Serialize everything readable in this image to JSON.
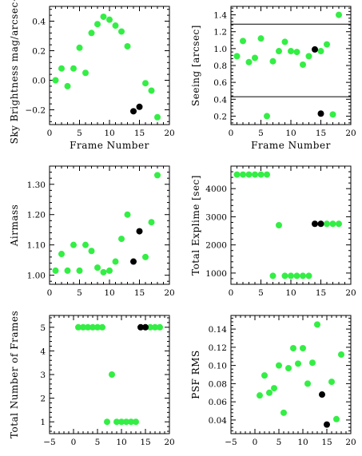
{
  "colors": {
    "green": "#33ee44",
    "black": "#000000",
    "frame": "#000000",
    "refline": "#000000"
  },
  "chart_data": [
    {
      "type": "scatter",
      "xlabel": "Frame Number",
      "ylabel": "Sky Brightness mag/arcsec^2",
      "xlim": [
        0,
        20
      ],
      "ylim": [
        -0.3,
        0.5
      ],
      "xticks": [
        0,
        5,
        10,
        15,
        20
      ],
      "xtick_labels": [
        "0",
        "5",
        "10",
        "15",
        "20"
      ],
      "yticks": [
        -0.2,
        0.0,
        0.2,
        0.4
      ],
      "ytick_labels": [
        "-0.2",
        "0.0",
        "0.2",
        "0.4"
      ],
      "series": [
        {
          "color": "green",
          "points": [
            [
              1,
              0.0
            ],
            [
              2,
              0.08
            ],
            [
              3,
              -0.04
            ],
            [
              4,
              0.08
            ],
            [
              5,
              0.22
            ],
            [
              6,
              0.05
            ],
            [
              7,
              0.32
            ],
            [
              8,
              0.38
            ],
            [
              9,
              0.43
            ],
            [
              10,
              0.41
            ],
            [
              11,
              0.37
            ],
            [
              12,
              0.33
            ],
            [
              13,
              0.23
            ],
            [
              16,
              -0.02
            ],
            [
              17,
              -0.07
            ],
            [
              18,
              -0.25
            ]
          ]
        },
        {
          "color": "black",
          "points": [
            [
              14,
              -0.21
            ],
            [
              15,
              -0.18
            ]
          ]
        }
      ]
    },
    {
      "type": "scatter",
      "xlabel": "Frame Number",
      "ylabel": "Seeing [arcsec]",
      "xlim": [
        0,
        20
      ],
      "ylim": [
        0.1,
        1.5
      ],
      "xticks": [
        0,
        5,
        10,
        15,
        20
      ],
      "xtick_labels": [
        "0",
        "5",
        "10",
        "15",
        "20"
      ],
      "yticks": [
        0.2,
        0.4,
        0.6,
        0.8,
        1.0,
        1.2,
        1.4
      ],
      "ytick_labels": [
        "0.2",
        "0.4",
        "0.6",
        "0.8",
        "1.0",
        "1.2",
        "1.4"
      ],
      "hlines": [
        1.29,
        0.43
      ],
      "series": [
        {
          "color": "green",
          "points": [
            [
              1,
              0.91
            ],
            [
              2,
              1.09
            ],
            [
              3,
              0.84
            ],
            [
              4,
              0.89
            ],
            [
              5,
              1.12
            ],
            [
              6,
              0.2
            ],
            [
              7,
              0.85
            ],
            [
              8,
              0.97
            ],
            [
              9,
              1.08
            ],
            [
              10,
              0.97
            ],
            [
              11,
              0.96
            ],
            [
              12,
              0.81
            ],
            [
              13,
              0.91
            ],
            [
              15,
              0.97
            ],
            [
              16,
              1.05
            ],
            [
              17,
              0.22
            ],
            [
              18,
              1.4
            ]
          ]
        },
        {
          "color": "black",
          "points": [
            [
              14,
              0.99
            ],
            [
              15,
              0.23
            ]
          ]
        }
      ]
    },
    {
      "type": "scatter",
      "xlabel": "",
      "ylabel": "Airmass",
      "xlim": [
        0,
        20
      ],
      "ylim": [
        0.97,
        1.36
      ],
      "xticks": [
        0,
        5,
        10,
        15,
        20
      ],
      "xtick_labels": [
        "0",
        "5",
        "10",
        "15",
        "20"
      ],
      "yticks": [
        1.0,
        1.1,
        1.2,
        1.3
      ],
      "ytick_labels": [
        "1.00",
        "1.10",
        "1.20",
        "1.30"
      ],
      "series": [
        {
          "color": "green",
          "points": [
            [
              1,
              1.015
            ],
            [
              2,
              1.07
            ],
            [
              3,
              1.015
            ],
            [
              4,
              1.1
            ],
            [
              5,
              1.015
            ],
            [
              6,
              1.1
            ],
            [
              7,
              1.08
            ],
            [
              8,
              1.025
            ],
            [
              9,
              1.01
            ],
            [
              10,
              1.015
            ],
            [
              11,
              1.045
            ],
            [
              12,
              1.12
            ],
            [
              13,
              1.2
            ],
            [
              16,
              1.06
            ],
            [
              17,
              1.175
            ],
            [
              18,
              1.33
            ]
          ]
        },
        {
          "color": "black",
          "points": [
            [
              14,
              1.045
            ],
            [
              15,
              1.145
            ]
          ]
        }
      ]
    },
    {
      "type": "scatter",
      "xlabel": "",
      "ylabel": "Total Explime [sec]",
      "xlim": [
        0,
        20
      ],
      "ylim": [
        600,
        4800
      ],
      "xticks": [
        0,
        5,
        10,
        15,
        20
      ],
      "xtick_labels": [
        "0",
        "5",
        "10",
        "15",
        "20"
      ],
      "yticks": [
        1000,
        2000,
        3000,
        4000
      ],
      "ytick_labels": [
        "1000",
        "2000",
        "3000",
        "4000"
      ],
      "series": [
        {
          "color": "green",
          "points": [
            [
              1,
              4500
            ],
            [
              2,
              4500
            ],
            [
              3,
              4500
            ],
            [
              4,
              4500
            ],
            [
              5,
              4500
            ],
            [
              6,
              4500
            ],
            [
              7,
              900
            ],
            [
              8,
              2700
            ],
            [
              9,
              900
            ],
            [
              10,
              900
            ],
            [
              11,
              900
            ],
            [
              12,
              900
            ],
            [
              13,
              900
            ],
            [
              16,
              2750
            ],
            [
              17,
              2750
            ],
            [
              18,
              2750
            ]
          ]
        },
        {
          "color": "black",
          "points": [
            [
              14,
              2750
            ],
            [
              15,
              2750
            ]
          ]
        }
      ]
    },
    {
      "type": "scatter",
      "xlabel": "",
      "ylabel": "Total Number of Frames",
      "xlim": [
        -5,
        20
      ],
      "ylim": [
        0.5,
        5.5
      ],
      "xticks": [
        -5,
        0,
        5,
        10,
        15,
        20
      ],
      "xtick_labels": [
        "-5",
        "0",
        "5",
        "10",
        "15",
        "20"
      ],
      "yticks": [
        1,
        2,
        3,
        4,
        5
      ],
      "ytick_labels": [
        "1",
        "2",
        "3",
        "4",
        "5"
      ],
      "series": [
        {
          "color": "green",
          "points": [
            [
              1,
              5
            ],
            [
              2,
              5
            ],
            [
              3,
              5
            ],
            [
              4,
              5
            ],
            [
              5,
              5
            ],
            [
              6,
              5
            ],
            [
              7,
              1
            ],
            [
              8,
              3
            ],
            [
              9,
              1
            ],
            [
              10,
              1
            ],
            [
              11,
              1
            ],
            [
              12,
              1
            ],
            [
              13,
              1
            ],
            [
              16,
              5
            ],
            [
              17,
              5
            ],
            [
              18,
              5
            ]
          ]
        },
        {
          "color": "black",
          "points": [
            [
              14,
              5
            ],
            [
              15,
              5
            ]
          ]
        }
      ]
    },
    {
      "type": "scatter",
      "xlabel": "",
      "ylabel": "PSF RMS",
      "xlim": [
        -5,
        20
      ],
      "ylim": [
        0.025,
        0.155
      ],
      "xticks": [
        -5,
        0,
        5,
        10,
        15,
        20
      ],
      "xtick_labels": [
        "-5",
        "0",
        "5",
        "10",
        "15",
        "20"
      ],
      "yticks": [
        0.04,
        0.06,
        0.08,
        0.1,
        0.12,
        0.14
      ],
      "ytick_labels": [
        "0.04",
        "0.06",
        "0.08",
        "0.10",
        "0.12",
        "0.14"
      ],
      "series": [
        {
          "color": "green",
          "points": [
            [
              1,
              0.067
            ],
            [
              2,
              0.089
            ],
            [
              3,
              0.07
            ],
            [
              4,
              0.075
            ],
            [
              5,
              0.1
            ],
            [
              6,
              0.048
            ],
            [
              7,
              0.097
            ],
            [
              8,
              0.119
            ],
            [
              9,
              0.102
            ],
            [
              10,
              0.119
            ],
            [
              11,
              0.08
            ],
            [
              12,
              0.103
            ],
            [
              13,
              0.145
            ],
            [
              16,
              0.082
            ],
            [
              17,
              0.041
            ],
            [
              18,
              0.112
            ]
          ]
        },
        {
          "color": "black",
          "points": [
            [
              14,
              0.068
            ],
            [
              15,
              0.035
            ]
          ]
        }
      ]
    }
  ]
}
